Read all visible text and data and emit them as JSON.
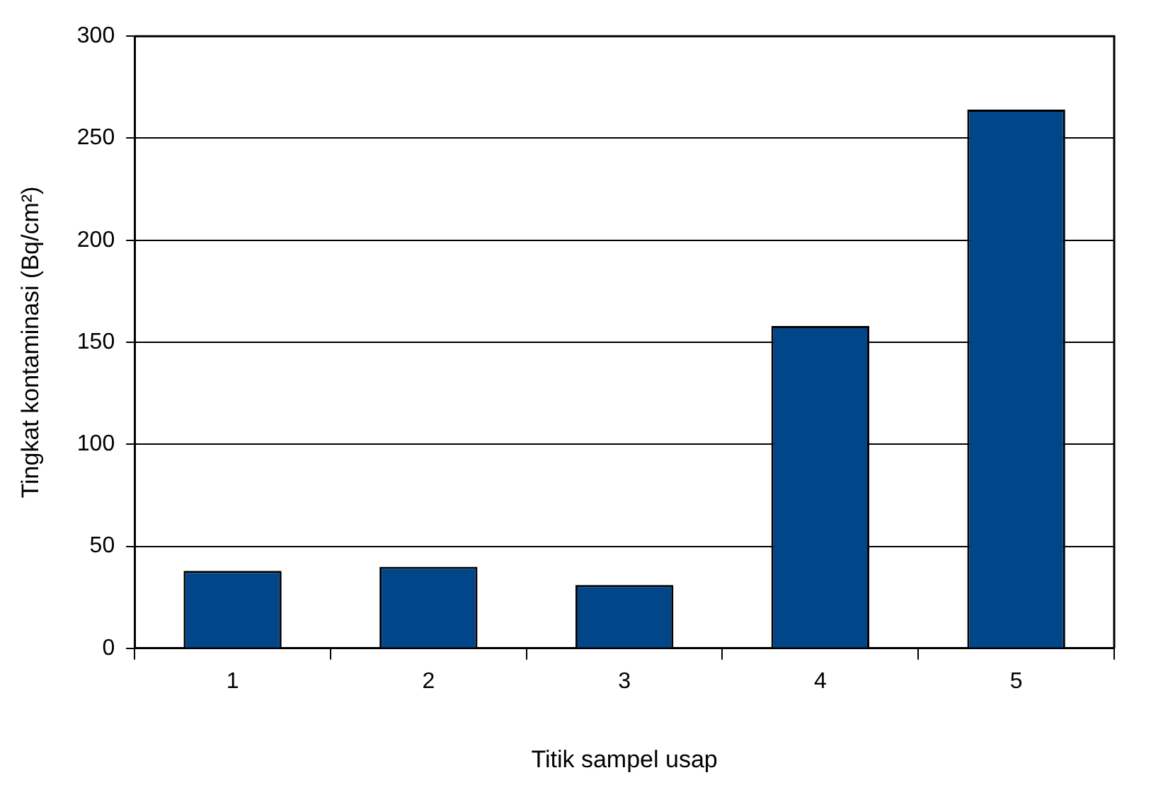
{
  "chart_data": {
    "type": "bar",
    "xlabel": "Titik sampel usap",
    "ylabel": "Tingkat kontaminasi (Bq/cm²)",
    "categories": [
      "1",
      "2",
      "3",
      "4",
      "5"
    ],
    "values": [
      38,
      40,
      31,
      158,
      264
    ],
    "color": "#02468a",
    "ylim": [
      0,
      300
    ],
    "yticks": [
      0,
      50,
      100,
      150,
      200,
      250,
      300
    ],
    "grid": "y",
    "legend": false
  }
}
